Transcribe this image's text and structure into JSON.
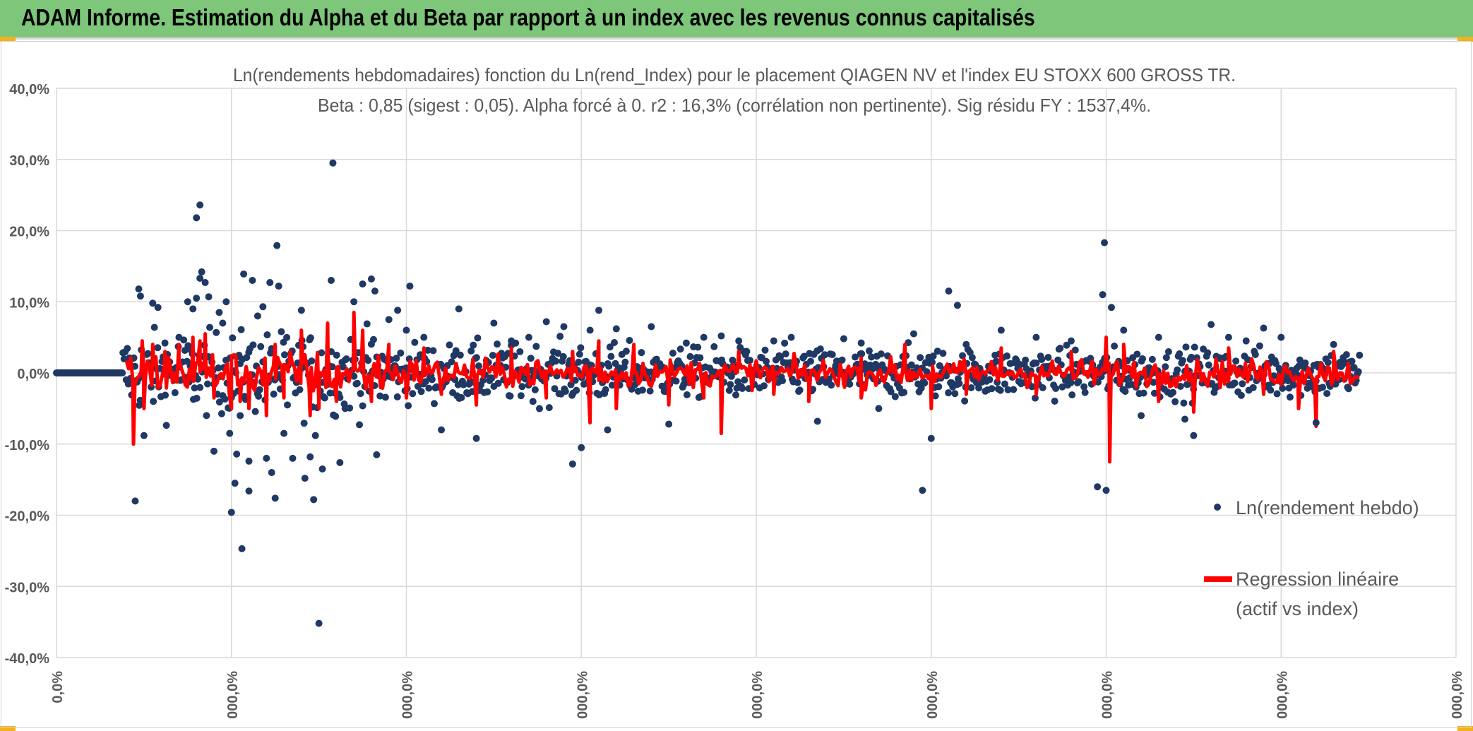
{
  "header": {
    "title": "ADAM Informe. Estimation du Alpha et du Beta par rapport à un index avec les revenus connus capitalisés"
  },
  "colors": {
    "header_bg": "#7dc67a",
    "points": "#1f3864",
    "regression": "#ff0000",
    "grid": "#d9d9d9",
    "accent": "#f2b21c"
  },
  "chart_data": {
    "type": "scatter",
    "title": "Ln(rendements hebdomadaires) fonction du Ln(rend_Index) pour le placement QIAGEN NV et l'index EU STOXX 600 GROSS TR.",
    "subtitle": "Beta : 0,85 (sigest : 0,05). Alpha forcé à 0. r2 : 16,3% (corrélation non pertinente). Sig résidu FY : 1537,4%.",
    "xlabel": "",
    "ylabel": "",
    "ylim": [
      -0.4,
      0.4
    ],
    "xlim": [
      0,
      8
    ],
    "y_ticks": [
      0.4,
      0.3,
      0.2,
      0.1,
      0.0,
      -0.1,
      -0.2,
      -0.3,
      -0.4
    ],
    "y_tick_labels": [
      "40,0%",
      "30,0%",
      "20,0%",
      "10,0%",
      "0,0%",
      "-10,0%",
      "-20,0%",
      "-30,0%",
      "-40,0%"
    ],
    "x_ticks": [
      0,
      1,
      2,
      3,
      4,
      5,
      6,
      7,
      8
    ],
    "x_tick_labels": [
      "0,0%",
      "000,0%",
      "000,0%",
      "000,0%",
      "000,0%",
      "000,0%",
      "000,0%",
      "000,0%",
      "000,0%"
    ],
    "series": [
      {
        "name": "Ln(rendement hebdo)",
        "kind": "points",
        "points": [
          [
            0.45,
            -0.18
          ],
          [
            0.47,
            0.118
          ],
          [
            0.48,
            0.108
          ],
          [
            0.5,
            -0.088
          ],
          [
            0.55,
            0.098
          ],
          [
            0.58,
            0.092
          ],
          [
            0.62,
            0.042
          ],
          [
            0.7,
            0.05
          ],
          [
            0.75,
            0.1
          ],
          [
            0.78,
            0.09
          ],
          [
            0.8,
            0.105
          ],
          [
            0.82,
            0.133
          ],
          [
            0.8,
            0.218
          ],
          [
            0.82,
            0.236
          ],
          [
            0.83,
            0.142
          ],
          [
            0.85,
            0.127
          ],
          [
            0.87,
            0.107
          ],
          [
            0.9,
            -0.11
          ],
          [
            0.93,
            0.085
          ],
          [
            0.95,
            0.07
          ],
          [
            0.97,
            0.1
          ],
          [
            0.99,
            -0.085
          ],
          [
            1.0,
            -0.196
          ],
          [
            1.02,
            -0.155
          ],
          [
            1.03,
            -0.114
          ],
          [
            1.05,
            -0.06
          ],
          [
            1.06,
            -0.247
          ],
          [
            1.07,
            0.139
          ],
          [
            1.1,
            -0.124
          ],
          [
            1.1,
            -0.166
          ],
          [
            1.12,
            0.13
          ],
          [
            1.15,
            0.08
          ],
          [
            1.18,
            0.093
          ],
          [
            1.2,
            -0.12
          ],
          [
            1.22,
            0.127
          ],
          [
            1.23,
            -0.14
          ],
          [
            1.25,
            -0.176
          ],
          [
            1.26,
            0.179
          ],
          [
            1.27,
            0.122
          ],
          [
            1.3,
            -0.085
          ],
          [
            1.32,
            -0.045
          ],
          [
            1.35,
            -0.12
          ],
          [
            1.4,
            0.088
          ],
          [
            1.42,
            -0.148
          ],
          [
            1.45,
            -0.118
          ],
          [
            1.47,
            -0.178
          ],
          [
            1.48,
            -0.088
          ],
          [
            1.5,
            -0.352
          ],
          [
            1.52,
            -0.135
          ],
          [
            1.57,
            0.13
          ],
          [
            1.58,
            0.295
          ],
          [
            1.62,
            -0.126
          ],
          [
            1.65,
            -0.05
          ],
          [
            1.7,
            0.1
          ],
          [
            1.75,
            0.125
          ],
          [
            1.8,
            0.132
          ],
          [
            1.82,
            0.115
          ],
          [
            1.83,
            -0.115
          ],
          [
            1.9,
            0.075
          ],
          [
            1.95,
            0.088
          ],
          [
            2.0,
            0.06
          ],
          [
            2.02,
            0.122
          ],
          [
            2.1,
            0.05
          ],
          [
            2.2,
            -0.08
          ],
          [
            2.3,
            0.09
          ],
          [
            2.4,
            -0.092
          ],
          [
            2.5,
            0.07
          ],
          [
            2.6,
            0.045
          ],
          [
            2.7,
            0.05
          ],
          [
            2.8,
            0.072
          ],
          [
            2.9,
            0.065
          ],
          [
            2.95,
            -0.128
          ],
          [
            3.0,
            -0.105
          ],
          [
            3.05,
            0.06
          ],
          [
            3.1,
            0.088
          ],
          [
            3.15,
            -0.08
          ],
          [
            3.2,
            0.062
          ],
          [
            3.4,
            0.065
          ],
          [
            3.5,
            -0.072
          ],
          [
            3.6,
            0.042
          ],
          [
            3.7,
            0.05
          ],
          [
            3.8,
            0.052
          ],
          [
            3.9,
            0.045
          ],
          [
            4.1,
            0.045
          ],
          [
            4.2,
            0.05
          ],
          [
            4.35,
            -0.068
          ],
          [
            4.5,
            0.048
          ],
          [
            4.6,
            0.042
          ],
          [
            4.7,
            -0.05
          ],
          [
            4.9,
            0.055
          ],
          [
            4.95,
            -0.165
          ],
          [
            5.0,
            -0.092
          ],
          [
            5.1,
            0.115
          ],
          [
            5.15,
            0.095
          ],
          [
            5.2,
            0.04
          ],
          [
            5.4,
            0.06
          ],
          [
            5.6,
            0.05
          ],
          [
            5.8,
            0.045
          ],
          [
            5.95,
            -0.16
          ],
          [
            5.98,
            0.11
          ],
          [
            5.99,
            0.183
          ],
          [
            6.0,
            -0.165
          ],
          [
            6.03,
            0.092
          ],
          [
            6.1,
            0.06
          ],
          [
            6.2,
            -0.06
          ],
          [
            6.3,
            0.05
          ],
          [
            6.45,
            -0.065
          ],
          [
            6.5,
            -0.088
          ],
          [
            6.6,
            0.068
          ],
          [
            6.7,
            0.05
          ],
          [
            6.8,
            0.045
          ],
          [
            6.9,
            0.063
          ],
          [
            7.0,
            0.05
          ],
          [
            7.2,
            -0.07
          ],
          [
            7.3,
            0.04
          ]
        ]
      },
      {
        "name": "Regression linéaire (actif vs index)",
        "kind": "line",
        "slope": 0.85,
        "spikes": [
          [
            0.44,
            -0.1
          ],
          [
            0.49,
            0.045
          ],
          [
            0.5,
            -0.05
          ],
          [
            0.55,
            0.04
          ],
          [
            0.62,
            0.03
          ],
          [
            0.7,
            0.04
          ],
          [
            0.78,
            0.05
          ],
          [
            0.82,
            0.045
          ],
          [
            0.85,
            0.055
          ],
          [
            0.9,
            -0.035
          ],
          [
            1.0,
            -0.05
          ],
          [
            1.05,
            -0.04
          ],
          [
            1.1,
            -0.05
          ],
          [
            1.2,
            -0.06
          ],
          [
            1.25,
            0.04
          ],
          [
            1.3,
            -0.035
          ],
          [
            1.4,
            0.06
          ],
          [
            1.45,
            -0.06
          ],
          [
            1.5,
            -0.05
          ],
          [
            1.55,
            0.07
          ],
          [
            1.6,
            -0.04
          ],
          [
            1.7,
            0.085
          ],
          [
            1.75,
            0.06
          ],
          [
            1.8,
            -0.04
          ],
          [
            1.9,
            0.04
          ],
          [
            2.0,
            -0.035
          ],
          [
            2.1,
            0.035
          ],
          [
            2.2,
            -0.03
          ],
          [
            2.4,
            -0.045
          ],
          [
            2.6,
            0.035
          ],
          [
            2.8,
            -0.035
          ],
          [
            2.95,
            0.03
          ],
          [
            3.05,
            -0.07
          ],
          [
            3.1,
            0.045
          ],
          [
            3.2,
            -0.05
          ],
          [
            3.3,
            0.04
          ],
          [
            3.5,
            -0.045
          ],
          [
            3.7,
            -0.035
          ],
          [
            3.8,
            -0.085
          ],
          [
            3.9,
            0.03
          ],
          [
            4.1,
            -0.03
          ],
          [
            4.3,
            -0.04
          ],
          [
            4.6,
            -0.035
          ],
          [
            4.85,
            0.04
          ],
          [
            5.0,
            -0.05
          ],
          [
            5.2,
            -0.03
          ],
          [
            5.4,
            0.035
          ],
          [
            5.6,
            -0.03
          ],
          [
            5.8,
            0.03
          ],
          [
            6.0,
            0.05
          ],
          [
            6.02,
            -0.125
          ],
          [
            6.1,
            0.04
          ],
          [
            6.3,
            -0.04
          ],
          [
            6.5,
            -0.055
          ],
          [
            6.7,
            0.035
          ],
          [
            6.9,
            -0.03
          ],
          [
            7.1,
            -0.05
          ],
          [
            7.2,
            -0.075
          ],
          [
            7.3,
            0.03
          ]
        ]
      }
    ],
    "legend": {
      "position": "bottom-right",
      "entries": [
        {
          "label": "Ln(rendement hebdo)"
        },
        {
          "label_line1": "Regression linéaire",
          "label_line2": "(actif vs index)"
        }
      ]
    }
  }
}
